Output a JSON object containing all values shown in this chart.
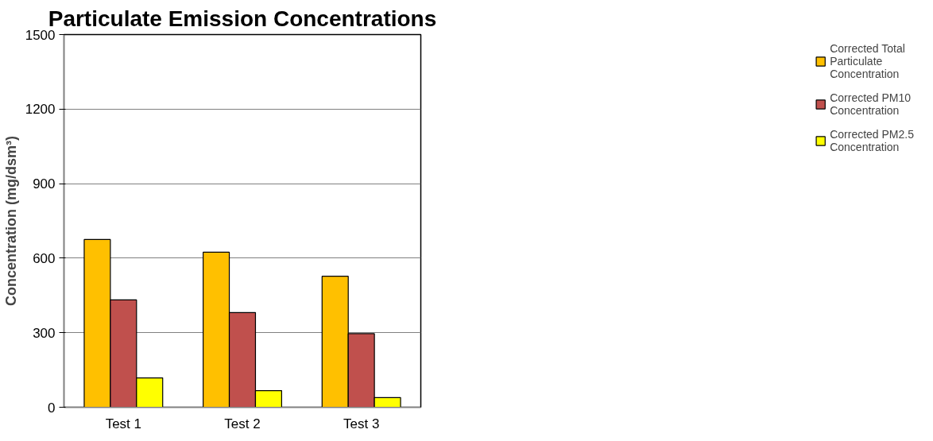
{
  "chart_data": {
    "type": "bar",
    "title": "Particulate Emission Concentrations",
    "ylabel": "Concentration (mg/dsm³)",
    "categories": [
      "Test 1",
      "Test 2",
      "Test 3"
    ],
    "series": [
      {
        "name": "Corrected Total Particulate Concentration",
        "color": "#ffc000",
        "values": [
          675,
          624,
          527
        ]
      },
      {
        "name": "Corrected PM10 Concentration",
        "color": "#c0504d",
        "values": [
          432,
          381,
          296
        ]
      },
      {
        "name": "Corrected PM2.5 Concentration",
        "color": "#ffff00",
        "values": [
          118,
          67,
          39
        ]
      }
    ],
    "ylim": [
      0,
      1500
    ],
    "yticks": [
      0,
      300,
      600,
      900,
      1200,
      1500
    ],
    "grid": "y",
    "legend": "right"
  }
}
